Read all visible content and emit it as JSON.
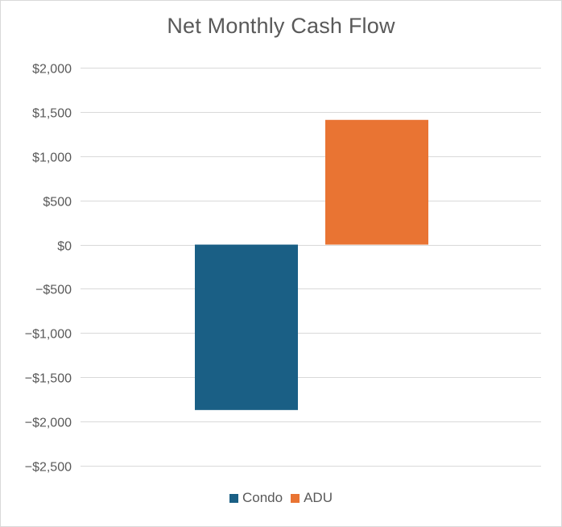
{
  "chart_data": {
    "type": "bar",
    "title": "Net Monthly Cash Flow",
    "xlabel": "",
    "ylabel": "",
    "categories": [
      ""
    ],
    "series": [
      {
        "name": "Condo",
        "values": [
          -1870
        ],
        "color": "#1a5f85"
      },
      {
        "name": "ADU",
        "values": [
          1410
        ],
        "color": "#e97433"
      }
    ],
    "ylim": [
      -2500,
      2000
    ],
    "y_ticks": [
      2000,
      1500,
      1000,
      500,
      0,
      -500,
      -1000,
      -1500,
      -2000,
      -2500
    ],
    "y_tick_labels": [
      "$2,000",
      "$1,500",
      "$1,000",
      "$500",
      "$0",
      "−$500",
      "−$1,000",
      "−$1,500",
      "−$2,000",
      "−$2,500"
    ],
    "grid": true,
    "legend_position": "bottom",
    "gridline_color": "#d9d9d9"
  }
}
